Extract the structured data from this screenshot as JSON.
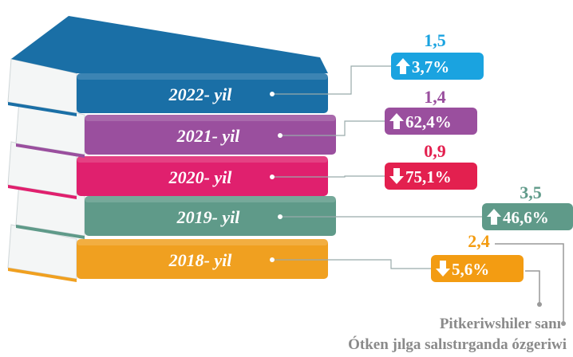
{
  "items": [
    {
      "year": "2022- yil",
      "value": "1,5",
      "change": "3,7%",
      "direction": "up",
      "color": "#1a6fa6",
      "accent": "#1aa3e0"
    },
    {
      "year": "2021- yil",
      "value": "1,4",
      "change": "62,4%",
      "direction": "up",
      "color": "#9a4f9e",
      "accent": "#9a4f9e"
    },
    {
      "year": "2020- yil",
      "value": "0,9",
      "change": "75,1%",
      "direction": "down",
      "color": "#e0206e",
      "accent": "#e3204f"
    },
    {
      "year": "2019- yil",
      "value": "3,5",
      "change": "46,6%",
      "direction": "up",
      "color": "#5f9a89",
      "accent": "#5f9a89"
    },
    {
      "year": "2018- yil",
      "value": "2,4",
      "change": "5,6%",
      "direction": "down",
      "color": "#f0a020",
      "accent": "#f39c12"
    }
  ],
  "footer": {
    "line1": "Pitkeriwshiler sanı",
    "line2": "Ótken jılga salıstırganda ózgeriwi"
  }
}
